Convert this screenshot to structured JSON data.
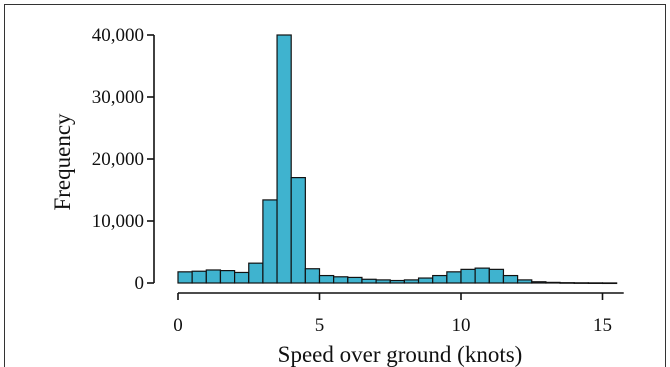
{
  "chart_data": {
    "type": "bar",
    "xlabel": "Speed over ground (knots)",
    "ylabel": "Frequency",
    "xlim": [
      0,
      15.75
    ],
    "ylim": [
      0,
      40000
    ],
    "bin_width": 0.5,
    "bins": [
      {
        "x0": 0.0,
        "x1": 0.5,
        "value": 1800
      },
      {
        "x0": 0.5,
        "x1": 1.0,
        "value": 1900
      },
      {
        "x0": 1.0,
        "x1": 1.5,
        "value": 2100
      },
      {
        "x0": 1.5,
        "x1": 2.0,
        "value": 2000
      },
      {
        "x0": 2.0,
        "x1": 2.5,
        "value": 1700
      },
      {
        "x0": 2.5,
        "x1": 3.0,
        "value": 3200
      },
      {
        "x0": 3.0,
        "x1": 3.5,
        "value": 13400
      },
      {
        "x0": 3.5,
        "x1": 4.0,
        "value": 40000
      },
      {
        "x0": 4.0,
        "x1": 4.5,
        "value": 17000
      },
      {
        "x0": 4.5,
        "x1": 5.0,
        "value": 2300
      },
      {
        "x0": 5.0,
        "x1": 5.5,
        "value": 1200
      },
      {
        "x0": 5.5,
        "x1": 6.0,
        "value": 1000
      },
      {
        "x0": 6.0,
        "x1": 6.5,
        "value": 900
      },
      {
        "x0": 6.5,
        "x1": 7.0,
        "value": 600
      },
      {
        "x0": 7.0,
        "x1": 7.5,
        "value": 500
      },
      {
        "x0": 7.5,
        "x1": 8.0,
        "value": 400
      },
      {
        "x0": 8.0,
        "x1": 8.5,
        "value": 500
      },
      {
        "x0": 8.5,
        "x1": 9.0,
        "value": 800
      },
      {
        "x0": 9.0,
        "x1": 9.5,
        "value": 1200
      },
      {
        "x0": 9.5,
        "x1": 10.0,
        "value": 1800
      },
      {
        "x0": 10.0,
        "x1": 10.5,
        "value": 2200
      },
      {
        "x0": 10.5,
        "x1": 11.0,
        "value": 2400
      },
      {
        "x0": 11.0,
        "x1": 11.5,
        "value": 2200
      },
      {
        "x0": 11.5,
        "x1": 12.0,
        "value": 1200
      },
      {
        "x0": 12.0,
        "x1": 12.5,
        "value": 500
      },
      {
        "x0": 12.5,
        "x1": 13.0,
        "value": 200
      },
      {
        "x0": 13.0,
        "x1": 13.5,
        "value": 100
      },
      {
        "x0": 13.5,
        "x1": 14.0,
        "value": 50
      },
      {
        "x0": 14.0,
        "x1": 14.5,
        "value": 30
      },
      {
        "x0": 14.5,
        "x1": 15.0,
        "value": 20
      },
      {
        "x0": 15.0,
        "x1": 15.5,
        "value": 10
      }
    ],
    "x_ticks": [
      0,
      5,
      10,
      15
    ],
    "x_tick_labels": [
      "0",
      "5",
      "10",
      "15"
    ],
    "y_ticks": [
      0,
      10000,
      20000,
      30000,
      40000
    ],
    "y_tick_labels": [
      "0",
      "10,000",
      "20,000",
      "30,000",
      "40,000"
    ],
    "bar_color": "#3fb3cf",
    "edge_color": "#111111",
    "grid": false,
    "legend": "none"
  }
}
